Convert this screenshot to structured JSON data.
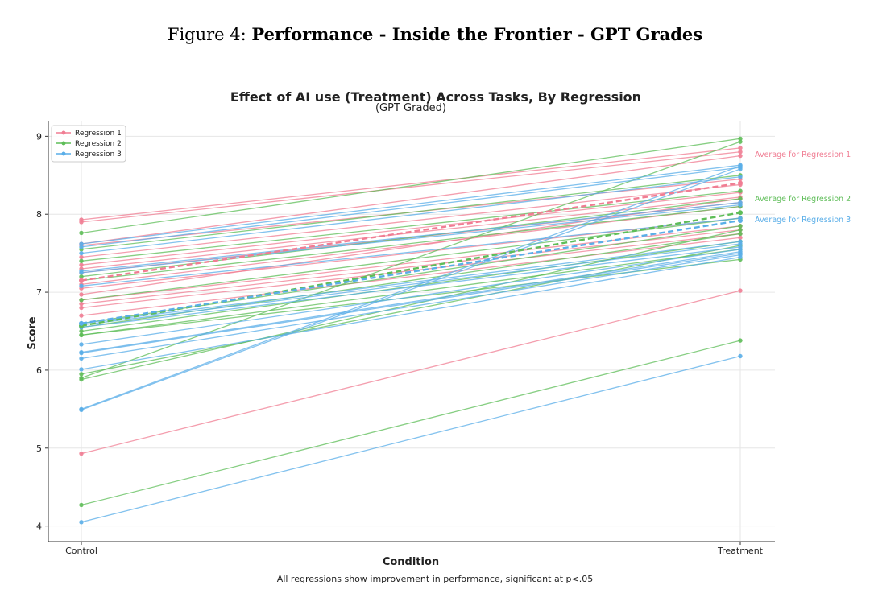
{
  "figure": {
    "label": "Figure 4:",
    "title": "Performance - Inside the Frontier - GPT Grades"
  },
  "footnote": "All regressions show improvement in performance, significant at p<.05",
  "colors": {
    "regression1": "#f07d93",
    "regression2": "#5ebd58",
    "regression3": "#5aaee8"
  },
  "chart_data": {
    "type": "line",
    "title": "Effect of AI use (Treatment) Across Tasks, By Regression",
    "subtitle": "(GPT Graded)",
    "xlabel": "Condition",
    "ylabel": "Score",
    "categories": [
      "Control",
      "Treatment"
    ],
    "ylim": [
      3.8,
      9.2
    ],
    "yticks": [
      4,
      5,
      6,
      7,
      8,
      9
    ],
    "grid": true,
    "legend": {
      "placement": "top-left",
      "entries": [
        "Regression 1",
        "Regression 2",
        "Regression 3"
      ]
    },
    "series": [
      {
        "name": "Regression 1",
        "color": "#f07d93",
        "lines": [
          [
            7.93,
            8.85
          ],
          [
            7.9,
            8.8
          ],
          [
            7.62,
            8.75
          ],
          [
            7.6,
            8.45
          ],
          [
            7.45,
            8.38
          ],
          [
            7.35,
            8.28
          ],
          [
            7.3,
            8.22
          ],
          [
            7.25,
            8.15
          ],
          [
            7.1,
            8.1
          ],
          [
            7.05,
            7.95
          ],
          [
            6.9,
            7.85
          ],
          [
            6.85,
            7.8
          ],
          [
            6.8,
            7.75
          ],
          [
            6.7,
            7.7
          ],
          [
            6.97,
            8.2
          ],
          [
            4.93,
            7.02
          ]
        ],
        "average": [
          7.15,
          8.4
        ],
        "average_label": "Average for Regression 1"
      },
      {
        "name": "Regression 2",
        "color": "#5ebd58",
        "lines": [
          [
            7.76,
            8.97
          ],
          [
            7.55,
            8.5
          ],
          [
            7.4,
            8.3
          ],
          [
            7.2,
            8.2
          ],
          [
            7.15,
            8.1
          ],
          [
            6.9,
            7.95
          ],
          [
            6.6,
            7.85
          ],
          [
            6.55,
            7.75
          ],
          [
            6.5,
            7.65
          ],
          [
            6.45,
            7.55
          ],
          [
            6.45,
            7.42
          ],
          [
            5.95,
            7.6
          ],
          [
            5.9,
            8.93
          ],
          [
            5.88,
            7.8
          ],
          [
            4.27,
            6.38
          ]
        ],
        "average": [
          6.57,
          8.02
        ],
        "average_label": "Average for Regression 2"
      },
      {
        "name": "Regression 3",
        "color": "#5aaee8",
        "lines": [
          [
            7.62,
            8.63
          ],
          [
            7.58,
            8.6
          ],
          [
            7.5,
            8.48
          ],
          [
            7.27,
            8.15
          ],
          [
            7.25,
            8.12
          ],
          [
            7.08,
            7.95
          ],
          [
            6.6,
            7.65
          ],
          [
            6.58,
            7.62
          ],
          [
            6.55,
            7.58
          ],
          [
            6.33,
            7.55
          ],
          [
            6.23,
            7.52
          ],
          [
            6.22,
            7.5
          ],
          [
            6.15,
            7.48
          ],
          [
            6.01,
            7.45
          ],
          [
            5.5,
            8.62
          ],
          [
            5.49,
            8.58
          ],
          [
            4.05,
            6.18
          ]
        ],
        "average": [
          6.6,
          7.92
        ],
        "average_label": "Average for Regression 3"
      }
    ]
  }
}
